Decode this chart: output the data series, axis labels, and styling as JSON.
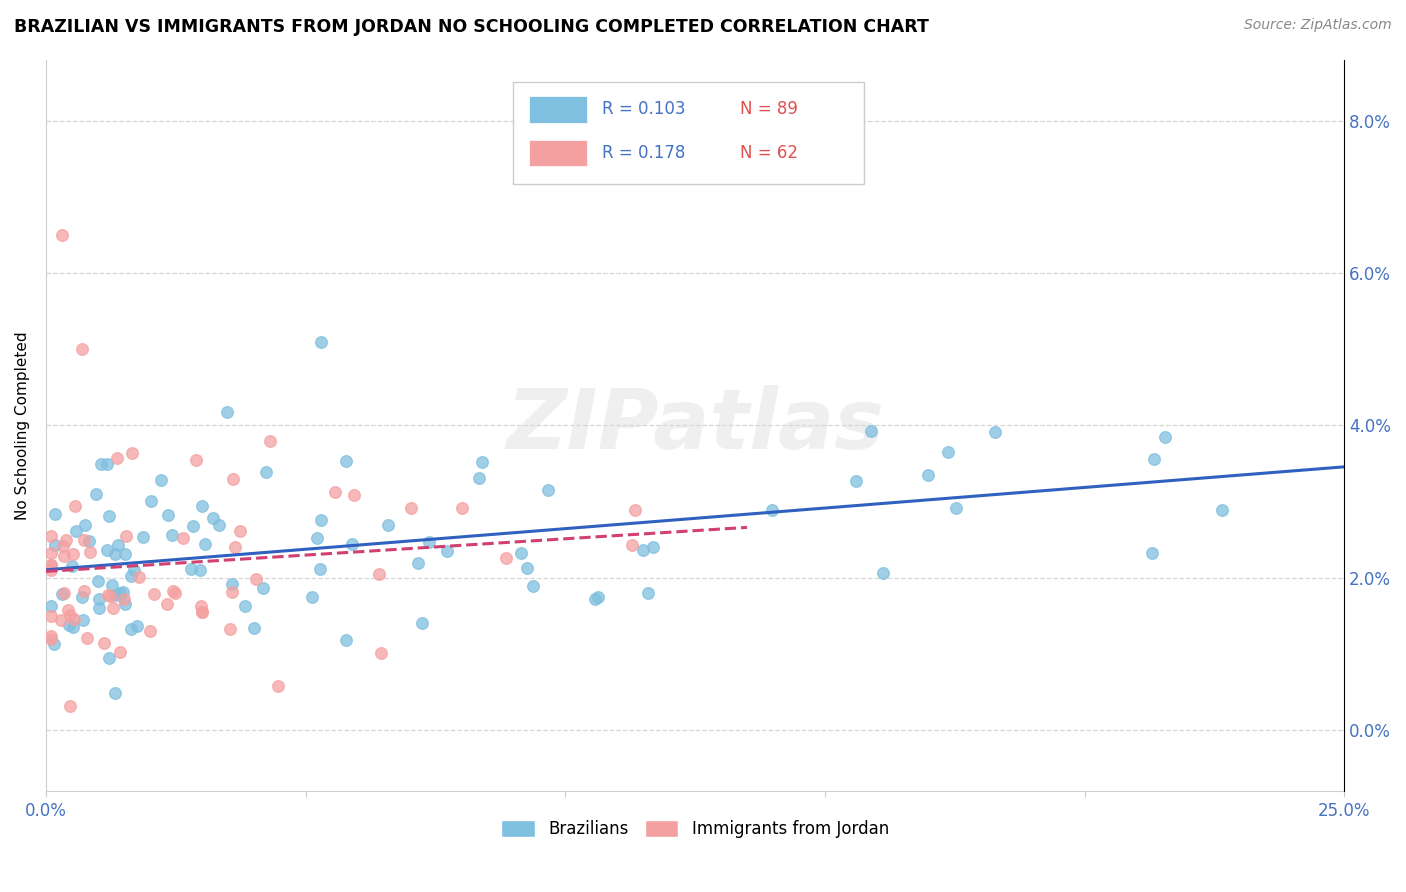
{
  "title": "BRAZILIAN VS IMMIGRANTS FROM JORDAN NO SCHOOLING COMPLETED CORRELATION CHART",
  "source": "Source: ZipAtlas.com",
  "ylabel": "No Schooling Completed",
  "xlim": [
    0.0,
    0.25
  ],
  "ylim": [
    -0.008,
    0.088
  ],
  "yticks": [
    0.0,
    0.02,
    0.04,
    0.06,
    0.08
  ],
  "ytick_labels": [
    "0.0%",
    "2.0%",
    "4.0%",
    "6.0%",
    "8.0%"
  ],
  "xticks": [
    0.0,
    0.05,
    0.1,
    0.15,
    0.2,
    0.25
  ],
  "legend_r1": "R = 0.103",
  "legend_n1": "N = 89",
  "legend_r2": "R = 0.178",
  "legend_n2": "N = 62",
  "blue_color": "#7fbfdf",
  "pink_color": "#f4a0a0",
  "trend_blue": "#3060c0",
  "trend_pink": "#d04070",
  "watermark": "ZIPatlas",
  "legend_text_color": "#4472c4",
  "tick_color": "#4472c4"
}
